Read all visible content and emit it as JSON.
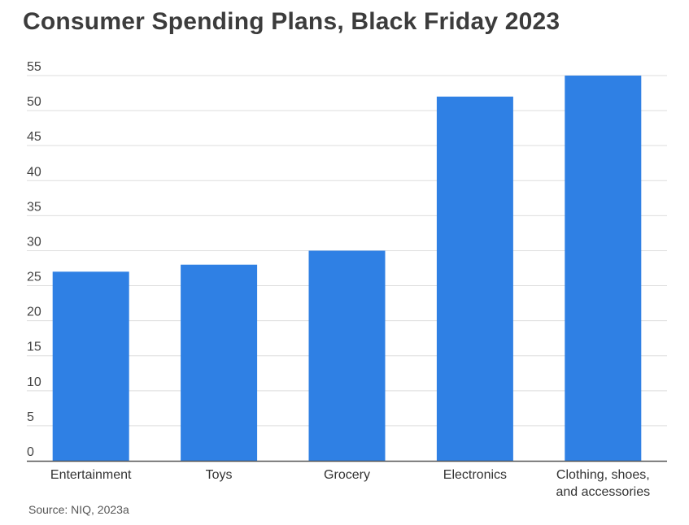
{
  "title": "Consumer Spending Plans, Black Friday 2023",
  "source": "Source: NIQ, 2023a",
  "colors": {
    "bar": "#2f80e4",
    "grid": "#dddddd",
    "axis": "#555555",
    "background": "#ffffff"
  },
  "chart_data": {
    "type": "bar",
    "title": "Consumer Spending Plans, Black Friday 2023",
    "xlabel": "",
    "ylabel": "",
    "categories": [
      "Entertainment",
      "Toys",
      "Grocery",
      "Electronics",
      "Clothing, shoes, and accessories"
    ],
    "category_lines": [
      [
        "Entertainment"
      ],
      [
        "Toys"
      ],
      [
        "Grocery"
      ],
      [
        "Electronics"
      ],
      [
        "Clothing, shoes,",
        "and accessories"
      ]
    ],
    "values": [
      27,
      28,
      30,
      52,
      55
    ],
    "ylim": [
      0,
      55
    ],
    "yticks": [
      0,
      5,
      10,
      15,
      20,
      25,
      30,
      35,
      40,
      45,
      50,
      55
    ],
    "grid": true,
    "legend": "none"
  }
}
